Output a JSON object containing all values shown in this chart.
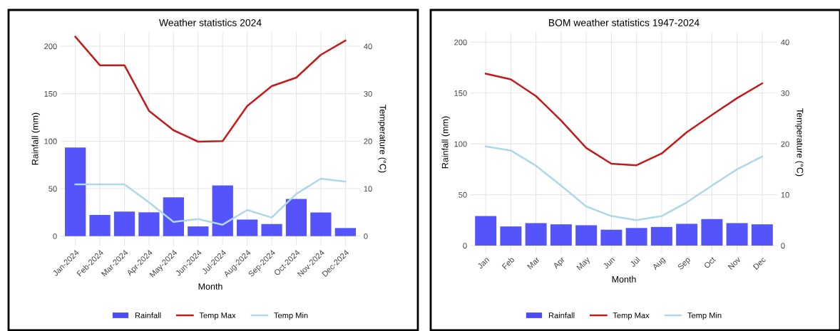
{
  "chart_data": [
    {
      "type": "bar",
      "title": "Weather statistics 2024",
      "xlabel": "Month",
      "ylabel": "Rainfall (mm)",
      "y2label": "Temperature (°C)",
      "categories": [
        "Jan-2024",
        "Feb-2024",
        "Mar-2024",
        "Apr-2024",
        "May-2024",
        "Jun-2024",
        "Jul-2024",
        "Aug-2024",
        "Sep-2024",
        "Oct-2024",
        "Nov-2024",
        "Dec-2024"
      ],
      "series": [
        {
          "name": "Rainfall",
          "color": "#4b4bfa",
          "values": [
            93.4,
            22.3,
            25.9,
            25.0,
            40.8,
            10.2,
            53.4,
            17.4,
            12.7,
            39.1,
            24.8,
            8.5
          ]
        },
        {
          "name": "Temp Max",
          "type": "line",
          "axis": "y2",
          "color": "#c41a1a",
          "values": [
            42.0,
            36.0,
            36.0,
            26.4,
            22.3,
            19.9,
            20.0,
            27.4,
            31.6,
            33.4,
            38.2,
            41.2
          ]
        },
        {
          "name": "Temp Min",
          "type": "line",
          "axis": "y2",
          "color": "#add8e6",
          "values": [
            10.9,
            10.9,
            10.9,
            7.1,
            3.0,
            3.6,
            2.4,
            5.5,
            3.9,
            8.9,
            12.1,
            11.5
          ]
        }
      ],
      "ylim": [
        -10,
        215
      ],
      "yticks": [
        0,
        50,
        100,
        150,
        200
      ],
      "y2lim": [
        -2,
        43
      ],
      "y2ticks": [
        0,
        10,
        20,
        30,
        40
      ],
      "grid": true,
      "legend": "bottom"
    },
    {
      "type": "bar",
      "title": "BOM weather statistics 1947-2024",
      "xlabel": "Month",
      "ylabel": "Rainfall (mm)",
      "y2label": "Temperature (°C)",
      "categories": [
        "Jan",
        "Feb",
        "Mar",
        "Apr",
        "May",
        "Jun",
        "Jul",
        "Aug",
        "Sep",
        "Oct",
        "Nov",
        "Dec"
      ],
      "series": [
        {
          "name": "Rainfall",
          "color": "#4b4bfa",
          "values": [
            29.1,
            18.8,
            22.1,
            20.9,
            20.0,
            15.6,
            17.3,
            18.3,
            21.4,
            26.0,
            22.1,
            20.9
          ]
        },
        {
          "name": "Temp Max",
          "type": "line",
          "axis": "y2",
          "color": "#c41a1a",
          "values": [
            33.8,
            32.7,
            29.4,
            24.6,
            19.2,
            16.1,
            15.8,
            18.1,
            22.3,
            25.7,
            29.0,
            31.9
          ]
        },
        {
          "name": "Temp Min",
          "type": "line",
          "axis": "y2",
          "color": "#add8e6",
          "values": [
            19.5,
            18.7,
            15.7,
            11.8,
            7.7,
            5.8,
            5.0,
            5.8,
            8.5,
            11.8,
            15.0,
            17.5
          ]
        }
      ],
      "ylim": [
        -7,
        210
      ],
      "yticks": [
        0,
        50,
        100,
        150,
        200
      ],
      "y2lim": [
        -1.4,
        42
      ],
      "y2ticks": [
        0,
        10,
        20,
        30,
        40
      ],
      "grid": true,
      "legend": "bottom"
    }
  ]
}
